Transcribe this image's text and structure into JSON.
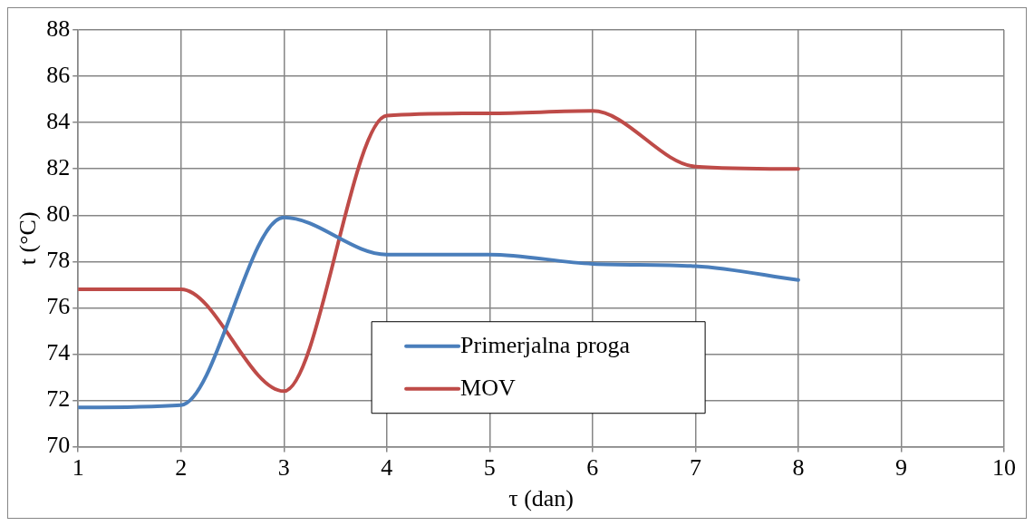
{
  "chart_data": {
    "type": "line",
    "xlabel": "τ (dan)",
    "ylabel": "t (°C)",
    "x": [
      1,
      2,
      3,
      4,
      5,
      6,
      7,
      8
    ],
    "series": [
      {
        "name": "Primerjalna proga",
        "color": "#4a7ebb",
        "values": [
          71.7,
          71.8,
          79.9,
          78.3,
          78.3,
          77.9,
          77.8,
          77.2
        ]
      },
      {
        "name": "MOV",
        "color": "#be4b48",
        "values": [
          76.8,
          76.8,
          72.4,
          84.3,
          84.4,
          84.5,
          82.1,
          82.0
        ]
      }
    ],
    "xlim": [
      1,
      10
    ],
    "xticks": [
      1,
      2,
      3,
      4,
      5,
      6,
      7,
      8,
      9,
      10
    ],
    "ylim": [
      70,
      88
    ],
    "yticks": [
      70,
      72,
      74,
      76,
      78,
      80,
      82,
      84,
      86,
      88
    ],
    "grid": true,
    "legend": "bottom",
    "marker": "none",
    "line_style": "solid"
  }
}
